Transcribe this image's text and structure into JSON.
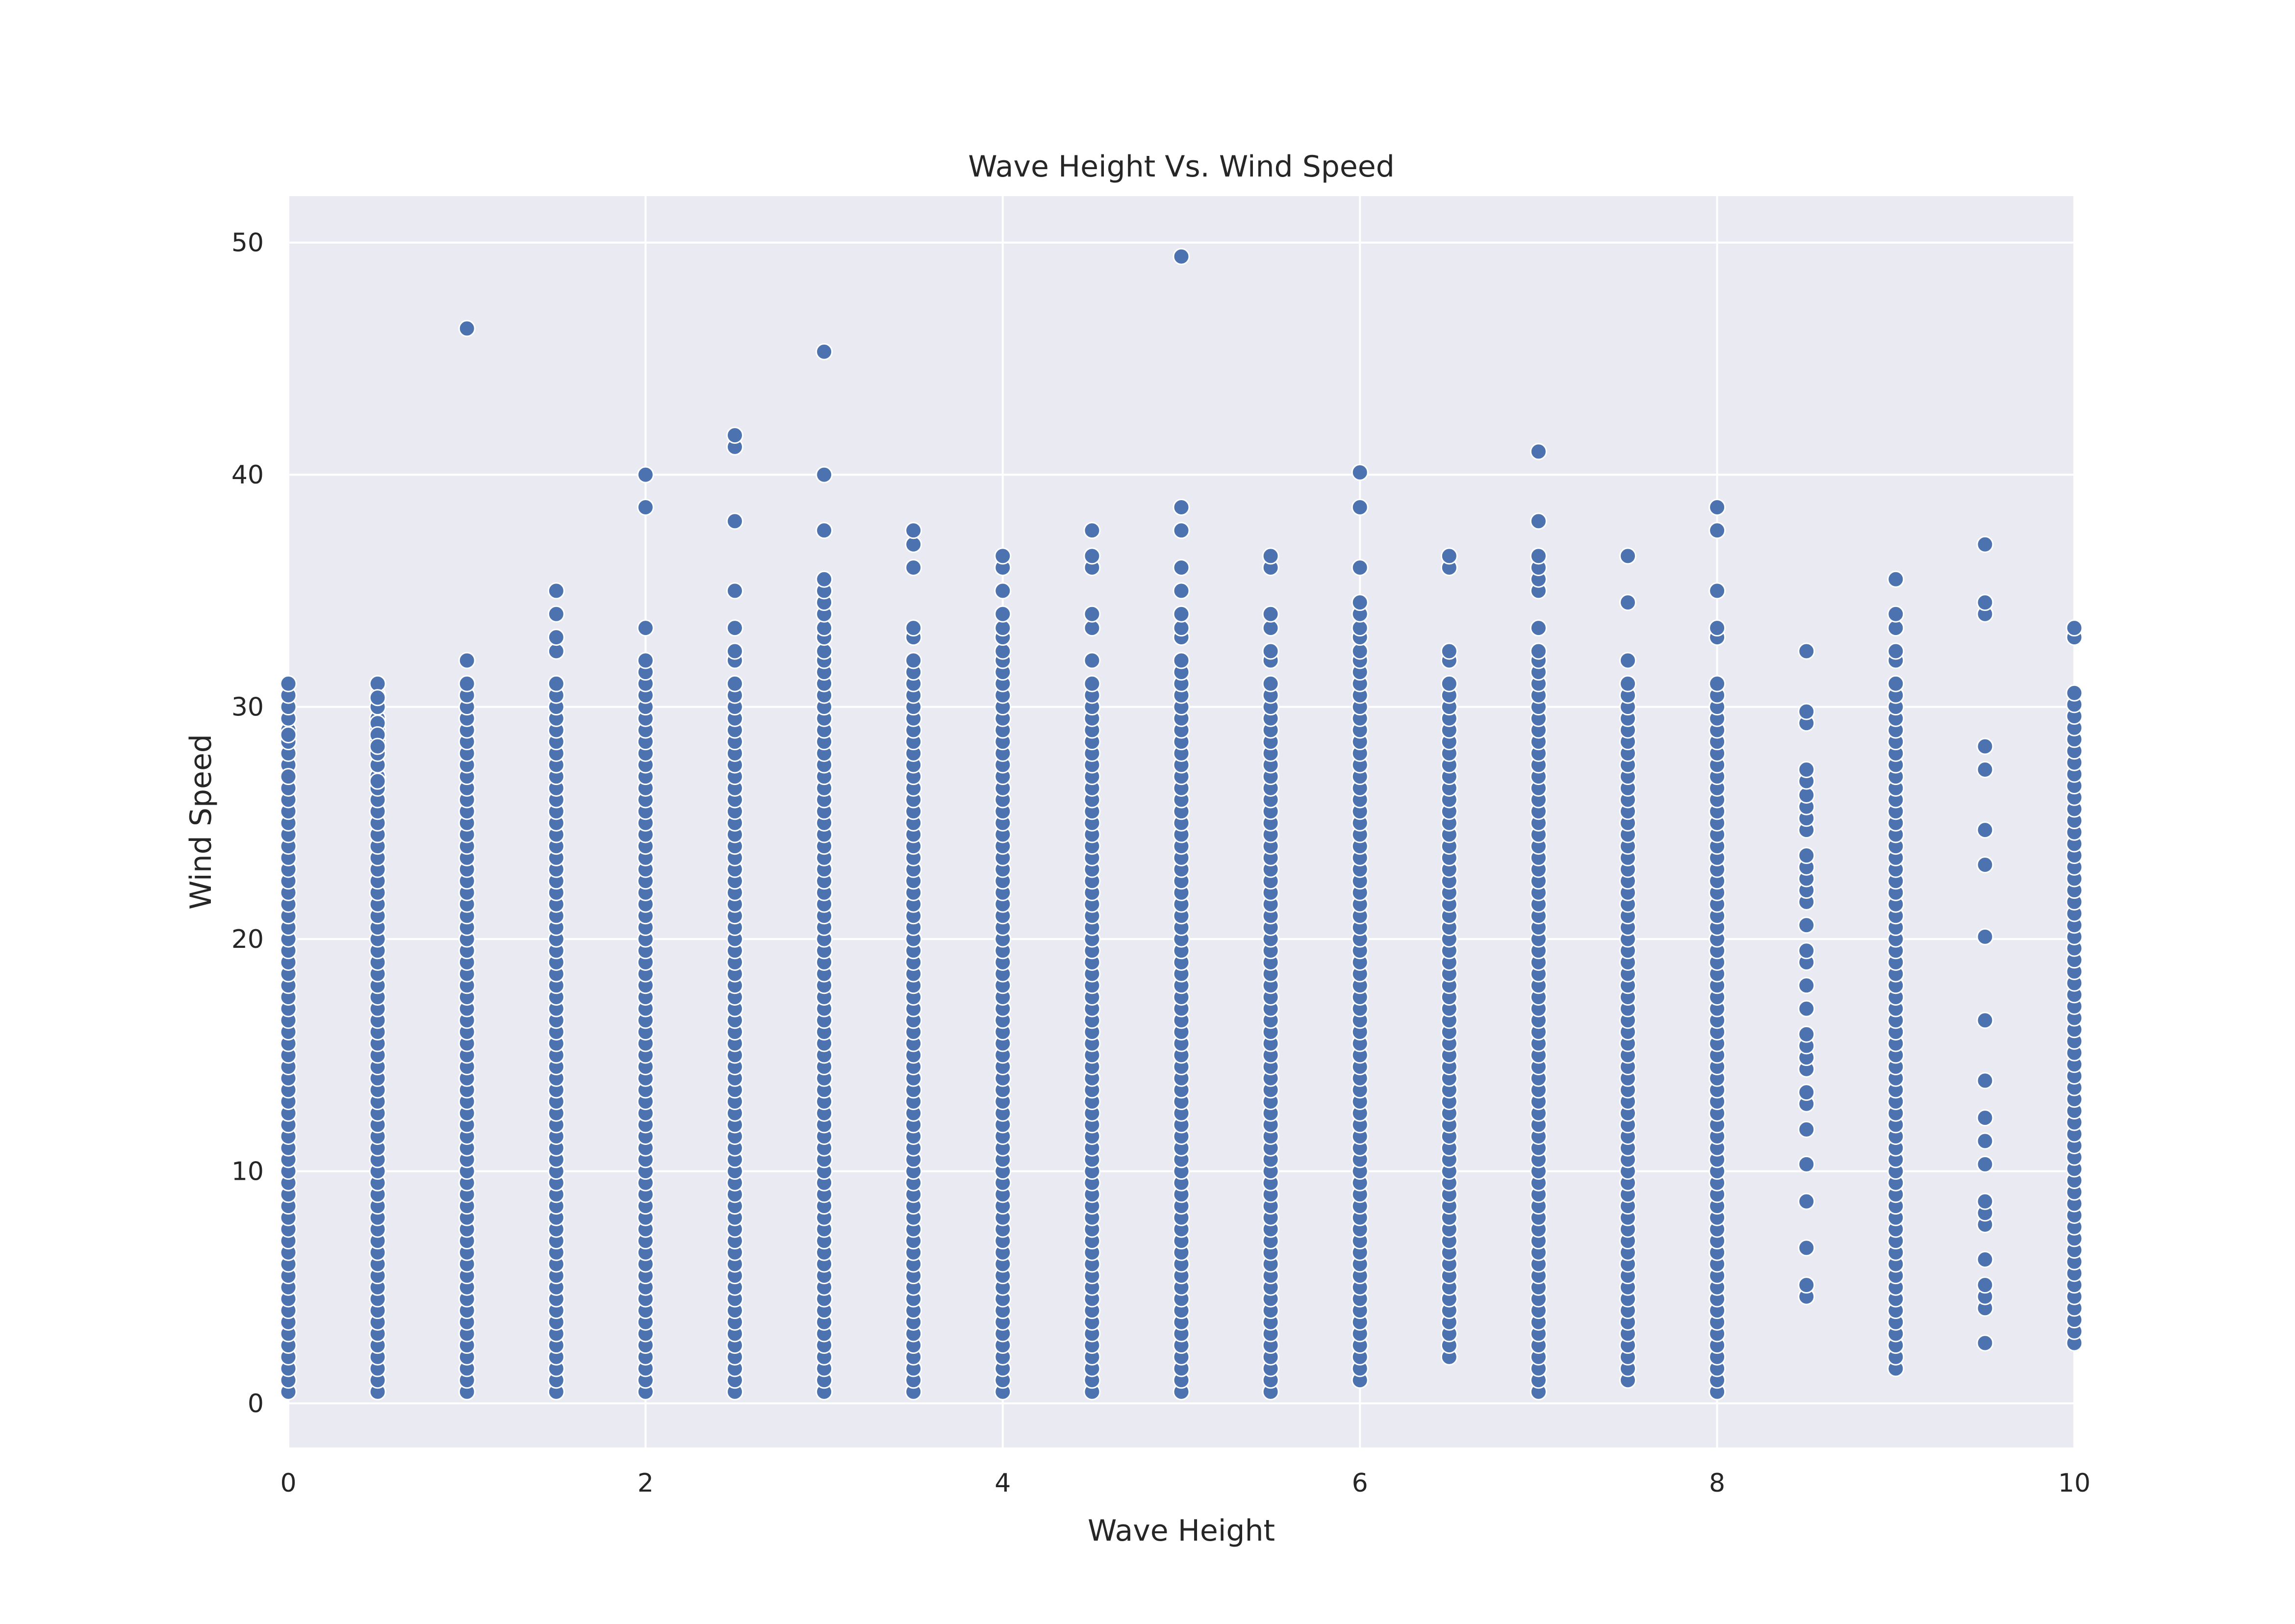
{
  "chart_data": {
    "type": "scatter",
    "title": "Wave Height Vs. Wind Speed",
    "xlabel": "Wave Height",
    "ylabel": "Wind Speed",
    "xlim": [
      0,
      10
    ],
    "ylim": [
      -1.9,
      52
    ],
    "xticks": [
      0,
      2,
      4,
      6,
      8,
      10
    ],
    "yticks": [
      0,
      10,
      20,
      30,
      40,
      50
    ],
    "grid": true,
    "legend": "none",
    "colors": {
      "background": "#eaeaf2",
      "grid": "#ffffff",
      "point": "#4c72b0",
      "point_edge": "#ffffff"
    },
    "columns": [
      {
        "x": 0.0,
        "ymin": 0.5,
        "ymax": 31.0,
        "step": 0.5,
        "extra": [
          28.8,
          27.0
        ]
      },
      {
        "x": 0.5,
        "ymin": 0.5,
        "ymax": 31.0,
        "step": 0.5,
        "extra": [
          30.4,
          29.3,
          28.8,
          28.3,
          26.8
        ]
      },
      {
        "x": 1.0,
        "ymin": 0.5,
        "ymax": 31.0,
        "step": 0.5,
        "extra": [
          32.0,
          46.3
        ]
      },
      {
        "x": 1.5,
        "ymin": 0.5,
        "ymax": 31.0,
        "step": 0.5,
        "extra": [
          32.4,
          33.0,
          34.0,
          35.0
        ]
      },
      {
        "x": 2.0,
        "ymin": 0.5,
        "ymax": 31.0,
        "step": 0.5,
        "extra": [
          31.5,
          32.0,
          33.4,
          38.6,
          40.0
        ]
      },
      {
        "x": 2.5,
        "ymin": 0.5,
        "ymax": 31.0,
        "step": 0.5,
        "extra": [
          32.0,
          32.4,
          33.4,
          35.0,
          38.0,
          41.2,
          41.7
        ]
      },
      {
        "x": 3.0,
        "ymin": 0.5,
        "ymax": 31.0,
        "step": 0.5,
        "extra": [
          31.5,
          32.0,
          32.4,
          33.0,
          33.4,
          34.0,
          34.5,
          35.0,
          35.5,
          37.6,
          40.0,
          45.3
        ]
      },
      {
        "x": 3.5,
        "ymin": 0.5,
        "ymax": 31.0,
        "step": 0.5,
        "extra": [
          31.5,
          32.0,
          33.0,
          33.4,
          36.0,
          37.0,
          37.6
        ]
      },
      {
        "x": 4.0,
        "ymin": 0.5,
        "ymax": 31.0,
        "step": 0.5,
        "extra": [
          31.5,
          32.0,
          32.4,
          33.0,
          33.4,
          34.0,
          35.0,
          36.0,
          36.5
        ]
      },
      {
        "x": 4.5,
        "ymin": 0.5,
        "ymax": 31.0,
        "step": 0.5,
        "extra": [
          32.0,
          33.4,
          34.0,
          36.0,
          36.5,
          37.6
        ]
      },
      {
        "x": 5.0,
        "ymin": 0.5,
        "ymax": 31.0,
        "step": 0.5,
        "extra": [
          31.5,
          32.0,
          33.0,
          33.4,
          34.0,
          35.0,
          36.0,
          37.6,
          38.6,
          49.4
        ]
      },
      {
        "x": 5.5,
        "ymin": 0.5,
        "ymax": 31.0,
        "step": 0.5,
        "extra": [
          32.0,
          32.4,
          33.4,
          34.0,
          36.0,
          36.5
        ]
      },
      {
        "x": 6.0,
        "ymin": 1.0,
        "ymax": 31.0,
        "step": 0.5,
        "extra": [
          31.5,
          32.0,
          32.4,
          33.0,
          33.4,
          34.0,
          34.5,
          36.0,
          38.6,
          40.1
        ]
      },
      {
        "x": 6.5,
        "ymin": 2.0,
        "ymax": 31.0,
        "step": 0.5,
        "extra": [
          32.0,
          32.4,
          36.0,
          36.5
        ]
      },
      {
        "x": 7.0,
        "ymin": 0.5,
        "ymax": 31.0,
        "step": 0.5,
        "extra": [
          31.5,
          32.0,
          32.4,
          33.4,
          35.0,
          35.5,
          36.0,
          36.5,
          38.0,
          41.0
        ]
      },
      {
        "x": 7.5,
        "ymin": 1.0,
        "ymax": 31.0,
        "step": 0.5,
        "extra": [
          32.0,
          34.5,
          36.5
        ]
      },
      {
        "x": 8.0,
        "ymin": 0.5,
        "ymax": 31.0,
        "step": 0.5,
        "extra": [
          33.0,
          33.4,
          35.0,
          37.6,
          38.6
        ]
      },
      {
        "x": 8.5,
        "ymin": null,
        "ymax": null,
        "step": 0.5,
        "extra": [
          4.6,
          5.1,
          6.7,
          8.7,
          10.3,
          11.8,
          12.9,
          13.4,
          14.4,
          14.9,
          15.4,
          15.9,
          17.0,
          18.0,
          19.0,
          19.5,
          20.6,
          21.6,
          22.1,
          22.6,
          23.1,
          23.6,
          24.7,
          25.2,
          25.7,
          26.2,
          26.8,
          27.3,
          29.3,
          29.8,
          32.4
        ]
      },
      {
        "x": 9.0,
        "ymin": 1.5,
        "ymax": 31.0,
        "step": 0.5,
        "extra": [
          32.0,
          32.4,
          33.4,
          34.0,
          35.5
        ]
      },
      {
        "x": 9.5,
        "ymin": null,
        "ymax": null,
        "step": 0.5,
        "extra": [
          2.6,
          4.1,
          4.6,
          5.1,
          6.2,
          7.7,
          8.2,
          8.7,
          10.3,
          11.3,
          12.3,
          13.9,
          16.5,
          20.1,
          23.2,
          24.7,
          27.3,
          28.3,
          34.0,
          34.5,
          37.0
        ]
      },
      {
        "x": 10.0,
        "ymin": 2.6,
        "ymax": 31.0,
        "step": 0.5,
        "extra": [
          33.0,
          33.4
        ]
      }
    ]
  }
}
